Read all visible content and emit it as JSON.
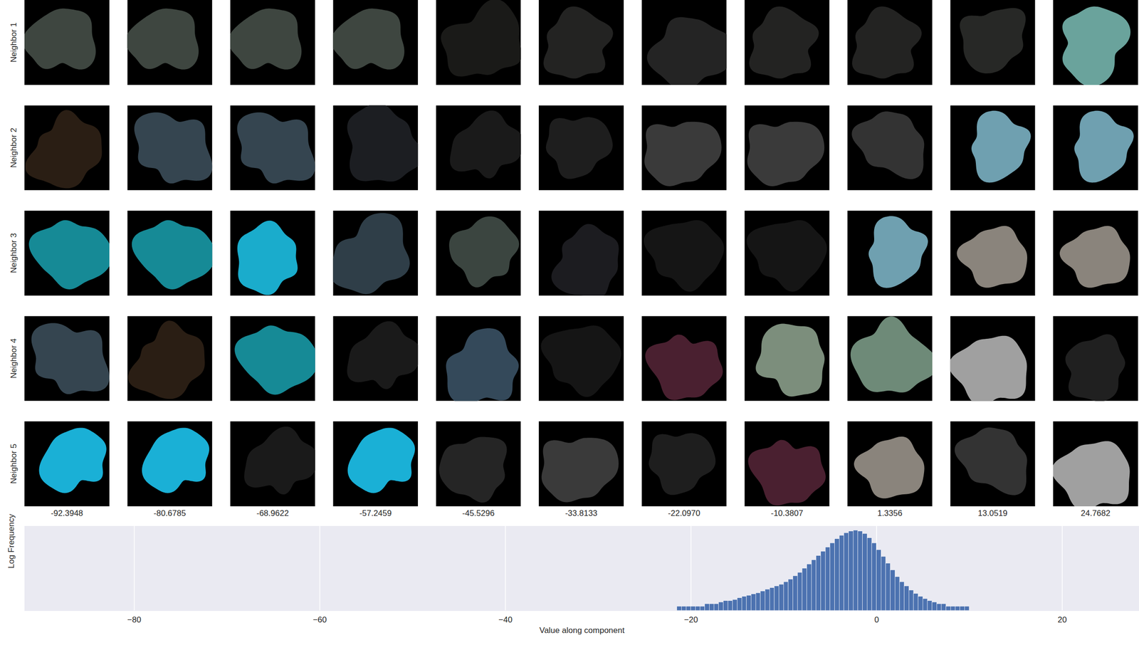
{
  "chart_data": {
    "type": "histogram",
    "grid_columns": [
      -92.3948,
      -80.6785,
      -68.9622,
      -57.2459,
      -45.5296,
      -33.8133,
      {
        "value": -22.097,
        "label": "-22.0970"
      },
      -10.3807,
      1.3356,
      13.0519,
      24.7682
    ],
    "grid_rows": [
      {
        "label": "Neighbor 1",
        "colors": [
          "#3e4640",
          "#3e4640",
          "#3e4640",
          "#3e4640",
          "#1a1a18",
          "#232322",
          "#242424",
          "#232322",
          "#232322",
          "#272826",
          "#6aa39c"
        ]
      },
      {
        "label": "Neighbor 2",
        "colors": [
          "#2a1e14",
          "#354550",
          "#354550",
          "#1c1e22",
          "#1a1a1a",
          "#1e1e1e",
          "#3a3a3a",
          "#3a3a3a",
          "#333333",
          "#6fa0b0",
          "#6fa0b0"
        ]
      },
      {
        "label": "Neighbor 3",
        "colors": [
          "#168a96",
          "#168a96",
          "#1aaccc",
          "#2f3e48",
          "#3b4540",
          "#1c1c20",
          "#151515",
          "#151515",
          "#6fa0b0",
          "#8a847c",
          "#8a847c"
        ]
      },
      {
        "label": "Neighbor 4",
        "colors": [
          "#354550",
          "#2a1e14",
          "#168a96",
          "#1a1a1a",
          "#34495a",
          "#151515",
          "#4a2030",
          "#7c8e7c",
          "#6e8a78",
          "#a0a0a0",
          "#202020"
        ]
      },
      {
        "label": "Neighbor 5",
        "colors": [
          "#1ab0d6",
          "#1ab0d6",
          "#1a1a1a",
          "#1ab0d6",
          "#252525",
          "#3a3a3a",
          "#1e1e1e",
          "#4a2030",
          "#8a847c",
          "#333333",
          "#a0a0a0"
        ]
      }
    ],
    "xlabel": "Value along component",
    "ylabel": "Log Frequency",
    "bins": [
      -22,
      -21.5,
      -21,
      -20.5,
      -20,
      -19.5,
      -19,
      -18.5,
      -18,
      -17.5,
      -17,
      -16.5,
      -16,
      -15.5,
      -15,
      -14.5,
      -14,
      -13.5,
      -13,
      -12.5,
      -12,
      -11.5,
      -11,
      -10.5,
      -10,
      -9.5,
      -9,
      -8.5,
      -8,
      -7.5,
      -7,
      -6.5,
      -6,
      -5.5,
      -5,
      -4.5,
      -4,
      -3.5,
      -3,
      -2.5,
      -2,
      -1.5,
      -1,
      -0.5,
      0,
      0.5,
      1,
      1.5,
      2,
      2.5,
      3,
      3.5,
      4,
      4.5,
      5,
      5.5,
      6,
      6.5,
      7,
      7.5,
      8,
      8.5,
      9,
      9.5,
      10,
      10.5,
      11
    ],
    "counts": [
      1,
      2,
      2,
      2,
      2,
      2,
      2,
      3,
      3,
      3,
      4,
      5,
      5,
      6,
      8,
      10,
      12,
      15,
      18,
      24,
      32,
      42,
      55,
      72,
      110,
      166,
      288,
      501,
      1000,
      1995,
      3981,
      7943,
      15849,
      31623,
      63096,
      125893,
      218776,
      331131,
      436516,
      501187,
      436516,
      288403,
      144544,
      63096,
      20893,
      6918,
      2291,
      759,
      251,
      110,
      55,
      28,
      16,
      10,
      7,
      5,
      4,
      3,
      3,
      2,
      2,
      2,
      2,
      2,
      1,
      1
    ],
    "color": "#4c72b0",
    "xlim": [
      -91.8,
      28.3
    ],
    "xticks": [
      -80,
      -60,
      -40,
      -20,
      0,
      20
    ],
    "ylim": [
      1,
      1000000
    ],
    "log": "y",
    "grid": true,
    "tick_labels": "x"
  }
}
